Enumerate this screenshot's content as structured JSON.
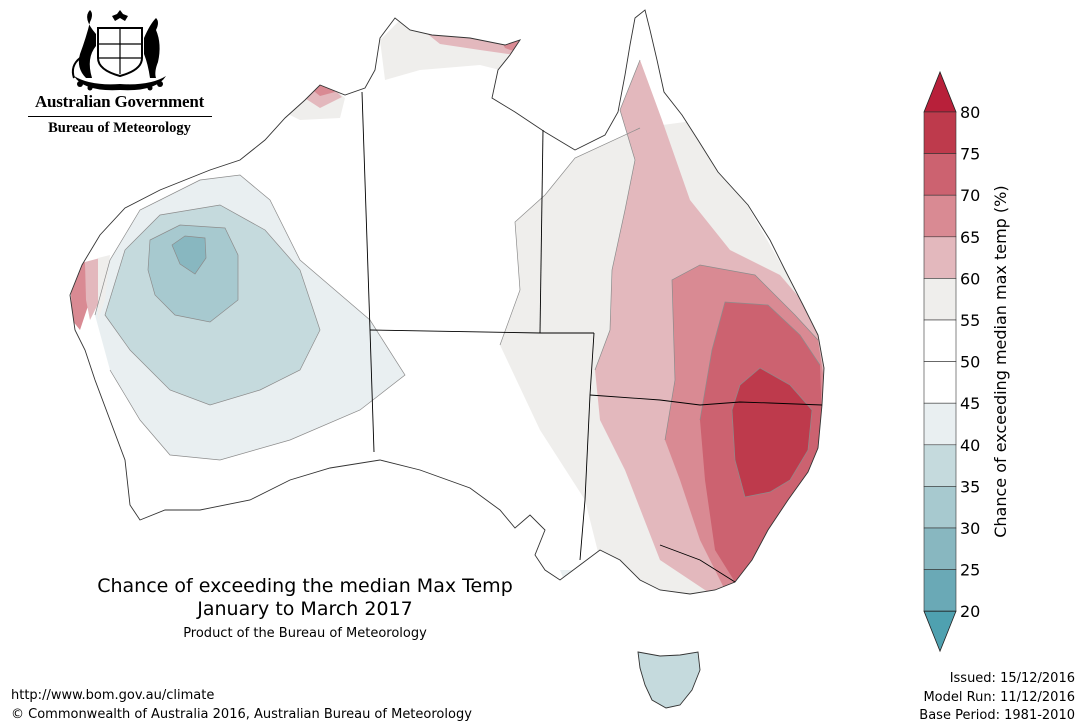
{
  "header": {
    "government": "Australian Government",
    "bureau": "Bureau of Meteorology"
  },
  "map": {
    "title": "Chance of exceeding the median Max Temp",
    "period": "January to March 2017",
    "product": "Product of the Bureau of Meteorology"
  },
  "legend": {
    "label": "Chance of exceeding median max temp (%)",
    "ticks": [
      "80",
      "75",
      "70",
      "65",
      "60",
      "55",
      "50",
      "45",
      "40",
      "35",
      "30",
      "25",
      "20"
    ],
    "bands": [
      {
        "range": "75-80",
        "color": "#be3a4c"
      },
      {
        "range": "70-75",
        "color": "#cc6270"
      },
      {
        "range": "65-70",
        "color": "#d98a93"
      },
      {
        "range": "60-65",
        "color": "#e3b8bd"
      },
      {
        "range": "55-60",
        "color": "#efeeec"
      },
      {
        "range": "50-55",
        "color": "#ffffff"
      },
      {
        "range": "45-50",
        "color": "#ffffff"
      },
      {
        "range": "40-45",
        "color": "#e9eff1"
      },
      {
        "range": "35-40",
        "color": "#c5dadd"
      },
      {
        "range": "30-35",
        "color": "#a7c9cf"
      },
      {
        "range": "25-30",
        "color": "#88b7c0"
      },
      {
        "range": "20-25",
        "color": "#6aa9b6"
      }
    ],
    "over_color": "#b8203a",
    "under_color": "#4fa1b0"
  },
  "footer": {
    "url": "http://www.bom.gov.au/climate",
    "copyright": "© Commonwealth of Australia 2016, Australian Bureau of Meteorology",
    "issued": "Issued: 15/12/2016",
    "model_run": "Model Run: 11/12/2016",
    "base_period": "Base Period: 1981-2010"
  }
}
